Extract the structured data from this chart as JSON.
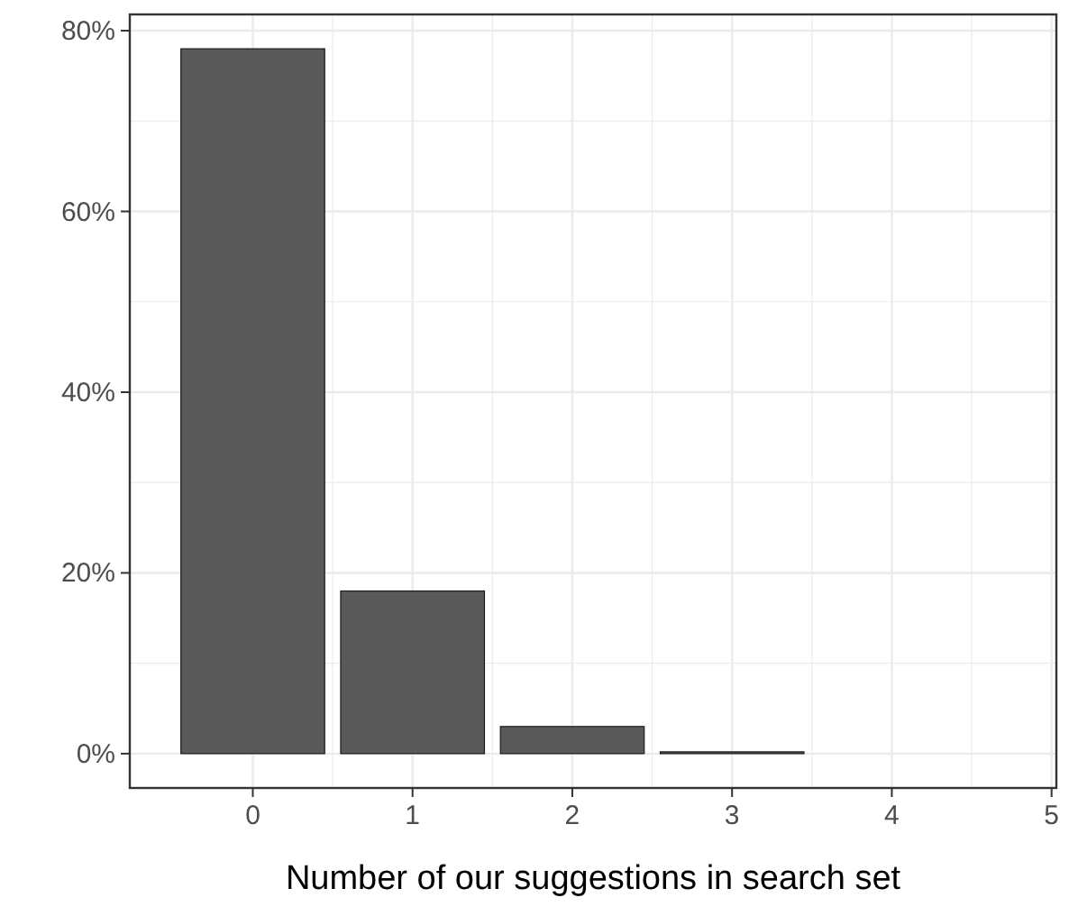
{
  "chart_data": {
    "type": "bar",
    "xlabel": "Number of our suggestions in search set",
    "x": [
      0,
      1,
      2,
      3
    ],
    "values": [
      78,
      18,
      3,
      0.2
    ],
    "color": "#595959",
    "xlim": [
      -0.77,
      5.03
    ],
    "xticks": [
      0,
      1,
      2,
      3,
      4,
      5
    ],
    "ylim": [
      -3.8,
      81.8
    ],
    "yticks": [
      {
        "value": 0,
        "label": "0%"
      },
      {
        "value": 20,
        "label": "20%"
      },
      {
        "value": 40,
        "label": "40%"
      },
      {
        "value": 60,
        "label": "60%"
      },
      {
        "value": 80,
        "label": "80%"
      }
    ],
    "grid": true
  }
}
